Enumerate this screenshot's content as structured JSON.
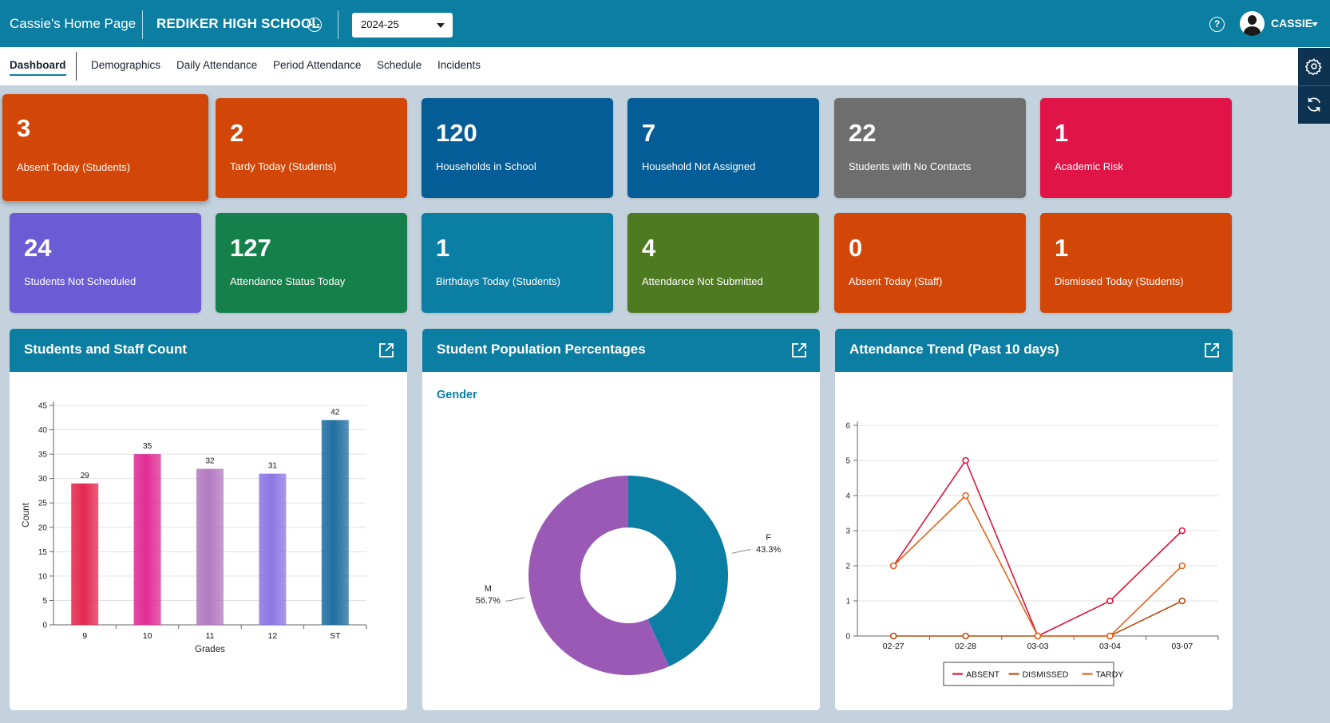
{
  "header": {
    "home_title": "Cassie's Home Page",
    "school_name": "REDIKER HIGH SCHOOL",
    "more_icon": "ellipsis-circle-icon",
    "year_selected": "2024-25",
    "help_icon": "question-circle-icon",
    "help_glyph": "?",
    "user_name": "CASSIE"
  },
  "nav": {
    "tabs": [
      "Dashboard",
      "Demographics",
      "Daily Attendance",
      "Period Attendance",
      "Schedule",
      "Incidents"
    ],
    "active": "Dashboard"
  },
  "side_tools": [
    "gear-icon",
    "refresh-icon"
  ],
  "tiles": [
    {
      "value": "3",
      "label": "Absent Today (Students)",
      "color": "#d24607"
    },
    {
      "value": "2",
      "label": "Tardy Today (Students)",
      "color": "#d24607"
    },
    {
      "value": "120",
      "label": "Households in School",
      "color": "#045d96"
    },
    {
      "value": "7",
      "label": "Household Not Assigned",
      "color": "#045d96"
    },
    {
      "value": "22",
      "label": "Students with No Contacts",
      "color": "#6e6e6e"
    },
    {
      "value": "1",
      "label": "Academic Risk",
      "color": "#e01446"
    },
    {
      "value": "24",
      "label": "Students Not Scheduled",
      "color": "#6b5bd4"
    },
    {
      "value": "127",
      "label": "Attendance Status Today",
      "color": "#16804a"
    },
    {
      "value": "1",
      "label": "Birthdays Today (Students)",
      "color": "#0b7ea4"
    },
    {
      "value": "4",
      "label": "Attendance Not Submitted",
      "color": "#4e7a22"
    },
    {
      "value": "0",
      "label": "Absent Today (Staff)",
      "color": "#d24607"
    },
    {
      "value": "1",
      "label": "Dismissed Today (Students)",
      "color": "#d24607"
    }
  ],
  "panels": {
    "count_title": "Students and Staff Count",
    "population_title": "Student Population Percentages",
    "population_subtitle": "Gender",
    "trend_title": "Attendance Trend (Past 10 days)"
  },
  "chart_data": [
    {
      "type": "bar",
      "title": "Students and Staff Count",
      "xlabel": "Grades",
      "ylabel": "Count",
      "categories": [
        "9",
        "10",
        "11",
        "12",
        "ST"
      ],
      "values": [
        29,
        35,
        32,
        31,
        42
      ],
      "colors": [
        "#e3294f",
        "#e02c94",
        "#b27ac0",
        "#8c76e4",
        "#1f6fa0"
      ],
      "ylim": [
        0,
        45
      ],
      "yticks": [
        0,
        5,
        10,
        15,
        20,
        25,
        30,
        35,
        40,
        45
      ],
      "grid": true
    },
    {
      "type": "pie",
      "title": "Student Population Percentages",
      "subtitle": "Gender",
      "donut": true,
      "slices": [
        {
          "label": "F",
          "percent": 43.3,
          "percent_text": "43.3%",
          "color": "#0b7ea4"
        },
        {
          "label": "M",
          "percent": 56.7,
          "percent_text": "56.7%",
          "color": "#9b59b6"
        }
      ]
    },
    {
      "type": "line",
      "title": "Attendance Trend (Past 10 days)",
      "x": [
        "02-27",
        "02-28",
        "03-03",
        "03-04",
        "03-07"
      ],
      "ylim": [
        0,
        6
      ],
      "yticks": [
        0,
        1,
        2,
        3,
        4,
        5,
        6
      ],
      "grid": true,
      "legend_position": "bottom",
      "series": [
        {
          "name": "ABSENT",
          "values": [
            2,
            5,
            0,
            1,
            3
          ],
          "color": "#dc143c"
        },
        {
          "name": "DISMISSED",
          "values": [
            0,
            0,
            0,
            0,
            1
          ],
          "color": "#b24c0c"
        },
        {
          "name": "TARDY",
          "values": [
            2,
            4,
            0,
            0,
            2
          ],
          "color": "#e2621b"
        }
      ]
    }
  ]
}
